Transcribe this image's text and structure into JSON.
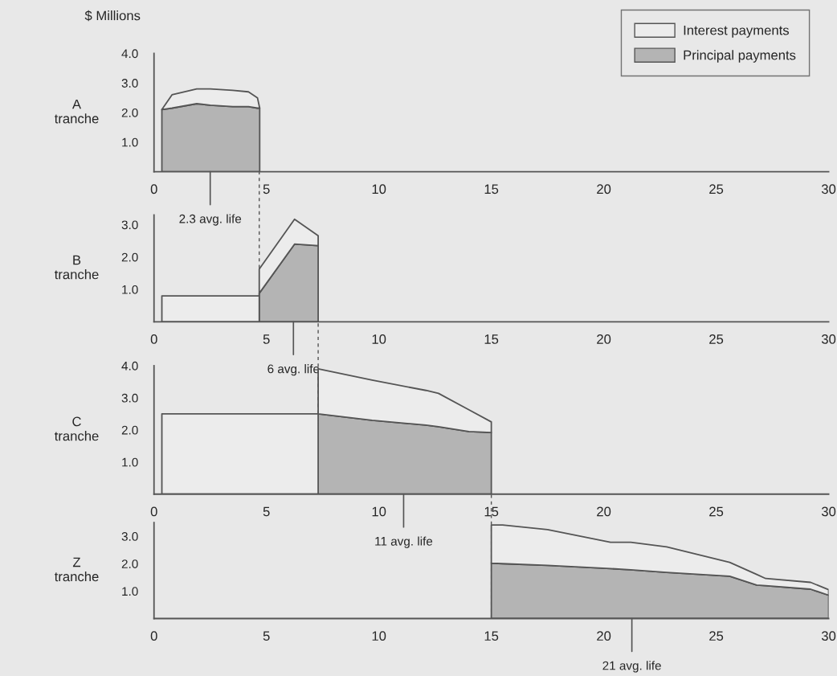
{
  "chart_data": [
    {
      "type": "area",
      "stacked": true,
      "ylabel": "A\ntranche",
      "xlim": [
        0,
        30
      ],
      "xticks": [
        0,
        5,
        10,
        15,
        20,
        25,
        30
      ],
      "ylim": [
        0,
        4
      ],
      "yticks": [
        {
          "value": 1,
          "label": "1.0"
        },
        {
          "value": 2,
          "label": "2.0"
        },
        {
          "value": 3,
          "label": "3.0"
        },
        {
          "value": 4,
          "label": "4.0"
        }
      ],
      "legend": "top right",
      "grid": false,
      "x": [
        0.35,
        0.8,
        1.9,
        2.5,
        3.5,
        4.2,
        4.6,
        4.7
      ],
      "series": [
        {
          "name": "Principal payments",
          "color": "#b4b4b4",
          "values": [
            2.1,
            2.15,
            2.3,
            2.25,
            2.2,
            2.2,
            2.15,
            2.15
          ]
        },
        {
          "name": "Interest payments",
          "color": "#ececec",
          "values": [
            0,
            0.45,
            0.5,
            0.55,
            0.55,
            0.5,
            0.35,
            0
          ]
        }
      ],
      "annotations": [
        "$ Millions",
        {
          "text": "2.3 avg. life",
          "x": 2.5,
          "y": 0
        }
      ]
    },
    {
      "type": "area",
      "stacked": true,
      "ylabel": "B\ntranche",
      "xlim": [
        0,
        30
      ],
      "xticks": [
        0,
        5,
        10,
        15,
        20,
        25,
        30
      ],
      "ylim": [
        0,
        3.3
      ],
      "yticks": [
        {
          "value": 1,
          "label": "1.0"
        },
        {
          "value": 2,
          "label": "2.0"
        },
        {
          "value": 3,
          "label": "3.0"
        }
      ],
      "grid": false,
      "x": [
        0.35,
        4.68,
        4.68,
        6.25,
        7.3
      ],
      "series": [
        {
          "color": "#b4b4b4",
          "values": [
            0,
            0,
            0.88,
            2.4,
            2.35
          ]
        },
        {
          "color": "#ececec",
          "values": [
            0.8,
            0.8,
            0.75,
            0.77,
            0.31
          ]
        }
      ],
      "ref_lines": [
        {
          "axis": "x",
          "value": 4.68,
          "line_style": "dashed"
        }
      ],
      "annotations": [
        {
          "text": "6 avg. life",
          "x": 6.2,
          "y": 0
        }
      ]
    },
    {
      "type": "area",
      "stacked": true,
      "ylabel": "C\ntranche",
      "xlim": [
        0,
        30
      ],
      "xticks": [
        0,
        5,
        10,
        15,
        20,
        25,
        30
      ],
      "ylim": [
        0,
        4
      ],
      "yticks": [
        {
          "value": 1,
          "label": "1.0"
        },
        {
          "value": 2,
          "label": "2.0"
        },
        {
          "value": 3,
          "label": "3.0"
        },
        {
          "value": 4,
          "label": "4.0"
        }
      ],
      "grid": false,
      "x": [
        0.35,
        7.3,
        7.3,
        9.7,
        12.1,
        12.65,
        14,
        15
      ],
      "series": [
        {
          "color": "#b4b4b4",
          "values": [
            0,
            0,
            2.5,
            2.3,
            2.15,
            2.1,
            1.95,
            1.92
          ]
        },
        {
          "color": "#ececec",
          "values": [
            2.5,
            2.5,
            1.4,
            1.25,
            1.08,
            1.04,
            0.68,
            0.33
          ]
        }
      ],
      "ref_lines": [
        {
          "axis": "x",
          "value": 7.3,
          "line_style": "dashed"
        }
      ],
      "annotations": [
        {
          "text": "11 avg. life",
          "x": 11.1,
          "y": 0
        }
      ]
    },
    {
      "type": "area",
      "stacked": true,
      "ylabel": "Z\ntranche",
      "xlim": [
        0,
        30
      ],
      "xticks": [
        0,
        5,
        10,
        15,
        20,
        25,
        30
      ],
      "ylim": [
        0,
        3.5
      ],
      "yticks": [
        {
          "value": 1,
          "label": "1.0"
        },
        {
          "value": 2,
          "label": "2.0"
        },
        {
          "value": 3,
          "label": "3.0"
        }
      ],
      "grid": false,
      "x": [
        15,
        15.5,
        17.5,
        20.3,
        21.2,
        22.8,
        25.6,
        26.8,
        27.2,
        29.2,
        30
      ],
      "series": [
        {
          "color": "#b4b4b4",
          "values": [
            2.02,
            2.0,
            1.94,
            1.82,
            1.78,
            1.68,
            1.54,
            1.22,
            1.2,
            1.07,
            0.85
          ]
        },
        {
          "color": "#ececec",
          "values": [
            1.39,
            1.41,
            1.3,
            0.96,
            1.0,
            0.93,
            0.51,
            0.39,
            0.26,
            0.25,
            0.2
          ]
        }
      ],
      "ref_lines": [
        {
          "axis": "x",
          "value": 15,
          "line_style": "dashed"
        }
      ],
      "annotations": [
        {
          "text": "21 avg. life",
          "x": 21.25,
          "y": 0
        }
      ]
    }
  ]
}
